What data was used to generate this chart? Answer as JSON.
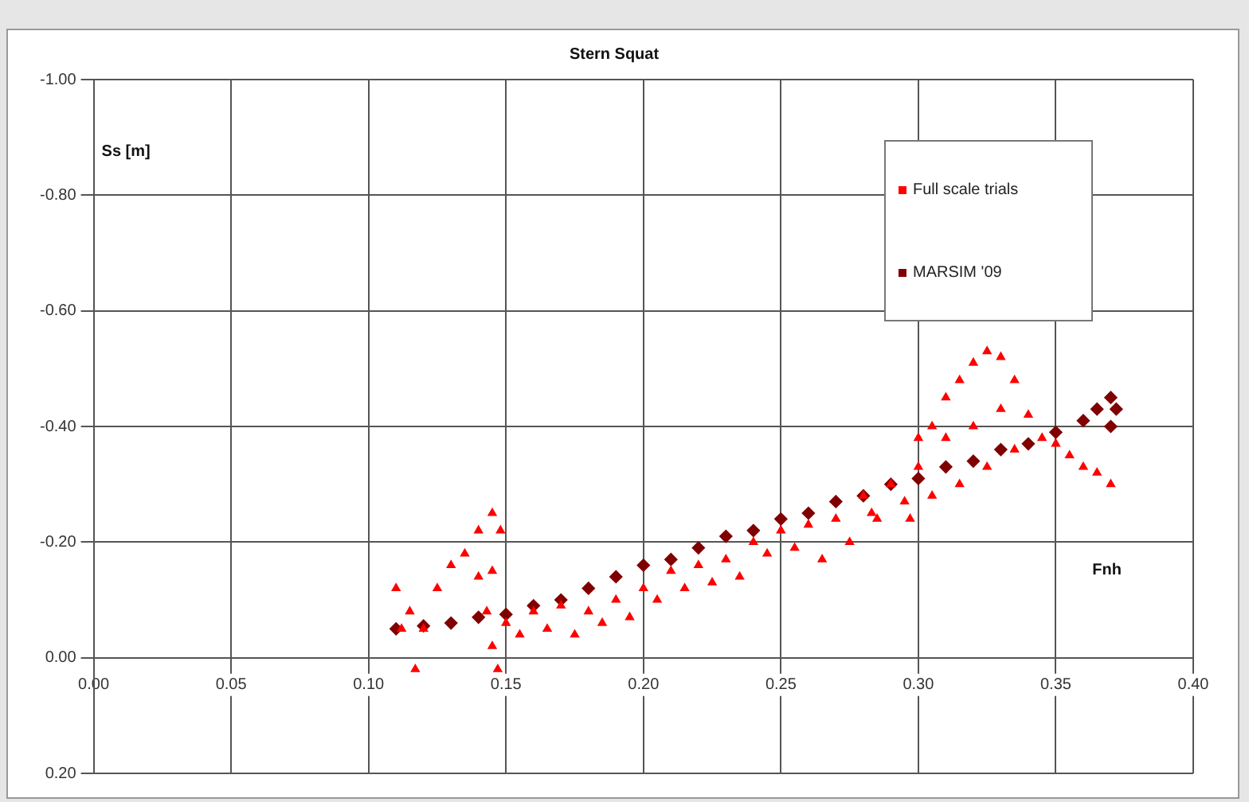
{
  "chart_data": {
    "type": "scatter",
    "title": "Stern Squat",
    "xlabel": "Fnh",
    "ylabel": "Ss [m]",
    "xlim": [
      0,
      0.4
    ],
    "xticks": [
      {
        "value": 0,
        "label": "0.00"
      },
      {
        "value": 0.05,
        "label": "0.05"
      },
      {
        "value": 0.1,
        "label": "0.10"
      },
      {
        "value": 0.15,
        "label": "0.15"
      },
      {
        "value": 0.2,
        "label": "0.20"
      },
      {
        "value": 0.25,
        "label": "0.25"
      },
      {
        "value": 0.3,
        "label": "0.30"
      },
      {
        "value": 0.35,
        "label": "0.35"
      },
      {
        "value": 0.4,
        "label": "0.40"
      }
    ],
    "ylim": [
      0.2,
      -1
    ],
    "yticks": [
      {
        "value": -1,
        "label": "-1.00"
      },
      {
        "value": -0.8,
        "label": "-0.80"
      },
      {
        "value": -0.6,
        "label": "-0.60"
      },
      {
        "value": -0.4,
        "label": "-0.40"
      },
      {
        "value": -0.2,
        "label": "-0.20"
      },
      {
        "value": 0,
        "label": "0.00"
      },
      {
        "value": 0.2,
        "label": "0.20"
      }
    ],
    "grid": true,
    "legend": "top right",
    "series": [
      {
        "name": "Full scale trials",
        "color": "#ff0000",
        "marker": "triangle",
        "x": [
          0.11,
          0.112,
          0.115,
          0.117,
          0.12,
          0.125,
          0.13,
          0.135,
          0.14,
          0.145,
          0.148,
          0.145,
          0.14,
          0.143,
          0.145,
          0.147,
          0.15,
          0.155,
          0.16,
          0.165,
          0.17,
          0.175,
          0.18,
          0.185,
          0.19,
          0.195,
          0.2,
          0.205,
          0.21,
          0.215,
          0.22,
          0.225,
          0.23,
          0.235,
          0.24,
          0.245,
          0.25,
          0.255,
          0.26,
          0.265,
          0.27,
          0.275,
          0.28,
          0.283,
          0.285,
          0.29,
          0.295,
          0.297,
          0.3,
          0.305,
          0.31,
          0.315,
          0.32,
          0.325,
          0.33,
          0.335,
          0.34,
          0.335,
          0.325,
          0.315,
          0.305,
          0.3,
          0.31,
          0.32,
          0.33,
          0.345,
          0.35,
          0.355,
          0.36,
          0.365,
          0.37
        ],
        "values": [
          -0.12,
          -0.05,
          -0.08,
          0.02,
          -0.05,
          -0.12,
          -0.16,
          -0.18,
          -0.22,
          -0.25,
          -0.22,
          -0.15,
          -0.14,
          -0.08,
          -0.02,
          0.02,
          -0.06,
          -0.04,
          -0.08,
          -0.05,
          -0.09,
          -0.04,
          -0.08,
          -0.06,
          -0.1,
          -0.07,
          -0.12,
          -0.1,
          -0.15,
          -0.12,
          -0.16,
          -0.13,
          -0.17,
          -0.14,
          -0.2,
          -0.18,
          -0.22,
          -0.19,
          -0.23,
          -0.17,
          -0.24,
          -0.2,
          -0.28,
          -0.25,
          -0.24,
          -0.3,
          -0.27,
          -0.24,
          -0.33,
          -0.4,
          -0.45,
          -0.48,
          -0.51,
          -0.53,
          -0.52,
          -0.48,
          -0.42,
          -0.36,
          -0.33,
          -0.3,
          -0.28,
          -0.38,
          -0.38,
          -0.4,
          -0.43,
          -0.38,
          -0.37,
          -0.35,
          -0.33,
          -0.32,
          -0.3
        ]
      },
      {
        "name": "MARSIM '09",
        "color": "#800000",
        "marker": "diamond",
        "x": [
          0.11,
          0.12,
          0.13,
          0.14,
          0.15,
          0.16,
          0.17,
          0.18,
          0.19,
          0.2,
          0.21,
          0.22,
          0.23,
          0.24,
          0.25,
          0.26,
          0.27,
          0.28,
          0.29,
          0.3,
          0.31,
          0.32,
          0.33,
          0.34,
          0.35,
          0.36,
          0.365,
          0.37,
          0.372,
          0.37
        ],
        "values": [
          -0.05,
          -0.055,
          -0.06,
          -0.07,
          -0.075,
          -0.09,
          -0.1,
          -0.12,
          -0.14,
          -0.16,
          -0.17,
          -0.19,
          -0.21,
          -0.22,
          -0.24,
          -0.25,
          -0.27,
          -0.28,
          -0.3,
          -0.31,
          -0.33,
          -0.34,
          -0.36,
          -0.37,
          -0.39,
          -0.41,
          -0.43,
          -0.45,
          -0.43,
          -0.4
        ]
      }
    ]
  }
}
